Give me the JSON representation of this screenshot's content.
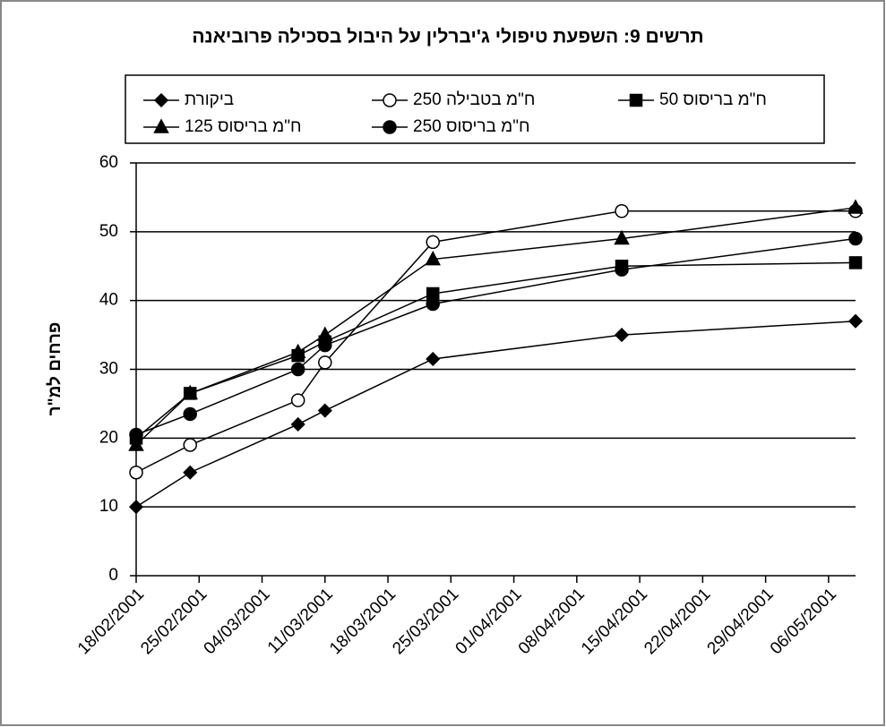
{
  "chart_data": {
    "type": "line",
    "title": "תרשים 9: השפעת טיפולי ג'יברלין על היבול  בסכילה פרוביאנה",
    "y_label": "פרחים למ\"ר",
    "x": [
      "18/02/2001",
      "24/02/2001",
      "08/03/2001",
      "11/03/2001",
      "23/03/2001",
      "13/04/2001",
      "09/05/2001"
    ],
    "xlim": [
      "18/02/2001",
      "09/05/2001"
    ],
    "xticks": [
      "18/02/2001",
      "25/02/2001",
      "04/03/2001",
      "11/03/2001",
      "18/03/2001",
      "25/03/2001",
      "01/04/2001",
      "08/04/2001",
      "15/04/2001",
      "22/04/2001",
      "29/04/2001",
      "06/05/2001"
    ],
    "ylim": [
      0,
      60
    ],
    "yticks": [
      0,
      10,
      20,
      30,
      40,
      50,
      60
    ],
    "grid": true,
    "legend": "top",
    "series": [
      {
        "name": "ביקורת",
        "color": "#000000",
        "marker": "diamond",
        "values": [
          10,
          15,
          22,
          24,
          31.5,
          35,
          37
        ]
      },
      {
        "name": "ח\"מ בטבילה 250",
        "color": "#000000",
        "marker": "open-circle",
        "values": [
          15,
          19,
          25.5,
          31,
          48.5,
          53,
          53
        ]
      },
      {
        "name": "ח\"מ בריסוס 50",
        "color": "#000000",
        "marker": "square",
        "values": [
          20,
          26.5,
          32,
          34,
          41,
          45,
          45.5
        ]
      },
      {
        "name": "ח\"מ בריסוס 125",
        "color": "#000000",
        "marker": "triangle",
        "values": [
          19,
          26.5,
          32.5,
          35,
          46,
          49,
          53.5
        ]
      },
      {
        "name": "ח\"מ בריסוס 250",
        "color": "#000000",
        "marker": "circle",
        "values": [
          20.5,
          23.5,
          30,
          33.5,
          39.5,
          44.5,
          49
        ]
      }
    ]
  }
}
